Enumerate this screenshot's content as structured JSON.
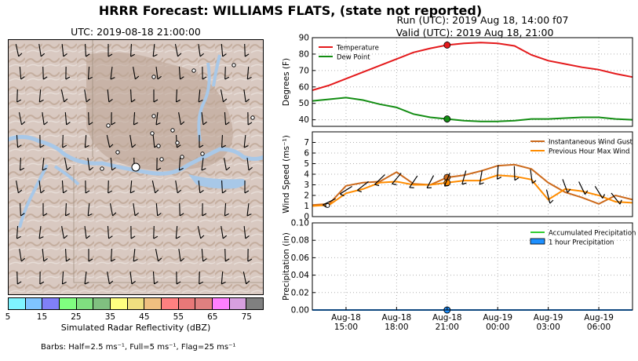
{
  "figure": {
    "title": "HRRR Forecast: WILLIAMS FLATS, (state not reported)",
    "map_subtitle": "UTC: 2019-08-18 21:00:00",
    "run_line": "Run (UTC): 2019 Aug 18, 14:00 f07",
    "valid_line": "Valid (UTC): 2019 Aug 18, 21:00",
    "barbs_note": "Barbs: Half=2.5 ms⁻¹, Full=5 ms⁻¹, Flag=25 ms⁻¹",
    "colorbar": {
      "label": "Simulated Radar Reflectivity (dBZ)",
      "ticks": [
        "5",
        "15",
        "25",
        "35",
        "45",
        "55",
        "65",
        "75"
      ],
      "colors": [
        "#7ff4ff",
        "#7fc4ff",
        "#8080f8",
        "#80ff80",
        "#80e080",
        "#80c080",
        "#ffff80",
        "#f0e080",
        "#f0c080",
        "#ff8080",
        "#e87878",
        "#e08080",
        "#ff80ff",
        "#d8a0e0",
        "#808080"
      ]
    },
    "map_colors": {
      "terrain": "#d8c8c0",
      "water": "#a8c8e8",
      "boundary": "#a09080"
    }
  },
  "chart_data": [
    {
      "type": "line",
      "panel": "temperature",
      "ylabel": "Degrees (F)",
      "ylim": [
        36,
        90
      ],
      "yticks": [
        "40",
        "50",
        "60",
        "70",
        "80",
        "90"
      ],
      "x": [
        "2019-08-18 13:00",
        "2019-08-18 14:00",
        "2019-08-18 15:00",
        "2019-08-18 16:00",
        "2019-08-18 17:00",
        "2019-08-18 18:00",
        "2019-08-18 19:00",
        "2019-08-18 20:00",
        "2019-08-18 21:00",
        "2019-08-18 22:00",
        "2019-08-18 23:00",
        "2019-08-19 00:00",
        "2019-08-19 01:00",
        "2019-08-19 02:00",
        "2019-08-19 03:00",
        "2019-08-19 04:00",
        "2019-08-19 05:00",
        "2019-08-19 06:00",
        "2019-08-19 07:00",
        "2019-08-19 08:00"
      ],
      "series": [
        {
          "name": "Temperature",
          "color": "#e41a1c",
          "values": [
            58,
            61,
            65,
            69,
            73,
            77,
            81,
            83.5,
            85.5,
            86.5,
            87,
            86.5,
            85,
            79.5,
            76,
            74,
            72,
            70.5,
            68,
            66
          ]
        },
        {
          "name": "Dew Point",
          "color": "#138d13",
          "values": [
            51.5,
            52.5,
            53.5,
            52,
            49.5,
            47.5,
            43.5,
            41.5,
            40.5,
            39.5,
            39,
            39,
            39.5,
            40.5,
            40.5,
            41,
            41.5,
            41.5,
            40.5,
            40
          ]
        }
      ],
      "highlight_x": "2019-08-18 21:00",
      "legend": "upper-left",
      "grid": true
    },
    {
      "type": "line",
      "panel": "wind",
      "ylabel": "Wind Speed (ms⁻¹)",
      "ylim": [
        0,
        8
      ],
      "yticks": [
        "0",
        "1",
        "2",
        "3",
        "4",
        "5",
        "6",
        "7"
      ],
      "x": [
        "2019-08-18 13:00",
        "2019-08-18 14:00",
        "2019-08-18 15:00",
        "2019-08-18 16:00",
        "2019-08-18 17:00",
        "2019-08-18 18:00",
        "2019-08-18 19:00",
        "2019-08-18 20:00",
        "2019-08-18 21:00",
        "2019-08-18 22:00",
        "2019-08-18 23:00",
        "2019-08-19 00:00",
        "2019-08-19 01:00",
        "2019-08-19 02:00",
        "2019-08-19 03:00",
        "2019-08-19 04:00",
        "2019-08-19 05:00",
        "2019-08-19 06:00",
        "2019-08-19 07:00",
        "2019-08-19 08:00"
      ],
      "series": [
        {
          "name": "Instantaneous Wind Gust",
          "color": "#cc6a1c",
          "values": [
            1.1,
            1.2,
            2.9,
            3.2,
            3.3,
            4.2,
            3.1,
            3.0,
            3.7,
            3.9,
            4.3,
            4.8,
            4.9,
            4.5,
            3.2,
            2.3,
            1.8,
            1.2,
            2.0,
            1.6
          ]
        },
        {
          "name": "Previous Hour Max Wind",
          "color": "#ff8c00",
          "values": [
            1.0,
            1.1,
            2.2,
            2.6,
            3.2,
            3.3,
            3.0,
            3.0,
            3.2,
            3.4,
            3.4,
            3.9,
            3.8,
            3.5,
            1.6,
            2.6,
            2.4,
            2.0,
            1.4,
            1.3
          ]
        }
      ],
      "highlight_x": "2019-08-18 21:00",
      "legend": "upper-right",
      "grid": true
    },
    {
      "type": "line",
      "panel": "precipitation",
      "ylabel": "Precipitation (in)",
      "ylim": [
        0,
        0.1
      ],
      "yticks": [
        "0.00",
        "0.02",
        "0.04",
        "0.06",
        "0.08",
        "0.10"
      ],
      "xtick_labels": [
        [
          "Aug-18",
          "15:00"
        ],
        [
          "Aug-18",
          "18:00"
        ],
        [
          "Aug-18",
          "21:00"
        ],
        [
          "Aug-19",
          "00:00"
        ],
        [
          "Aug-19",
          "03:00"
        ],
        [
          "Aug-19",
          "06:00"
        ]
      ],
      "xtick_values": [
        "2019-08-18 15:00",
        "2019-08-18 18:00",
        "2019-08-18 21:00",
        "2019-08-19 00:00",
        "2019-08-19 03:00",
        "2019-08-19 06:00"
      ],
      "series": [
        {
          "name": "Accumulated Precipitation",
          "color": "#32cd32",
          "values": [
            0,
            0,
            0,
            0,
            0,
            0,
            0,
            0,
            0,
            0,
            0,
            0,
            0,
            0,
            0,
            0,
            0,
            0,
            0,
            0
          ]
        },
        {
          "name": "1 hour Precipitation",
          "color": "#1e90ff",
          "values": [
            0,
            0,
            0,
            0,
            0,
            0,
            0,
            0,
            0,
            0,
            0,
            0,
            0,
            0,
            0,
            0,
            0,
            0,
            0,
            0
          ]
        }
      ],
      "highlight_x": "2019-08-18 21:00",
      "legend": "upper-right",
      "grid": true
    }
  ]
}
